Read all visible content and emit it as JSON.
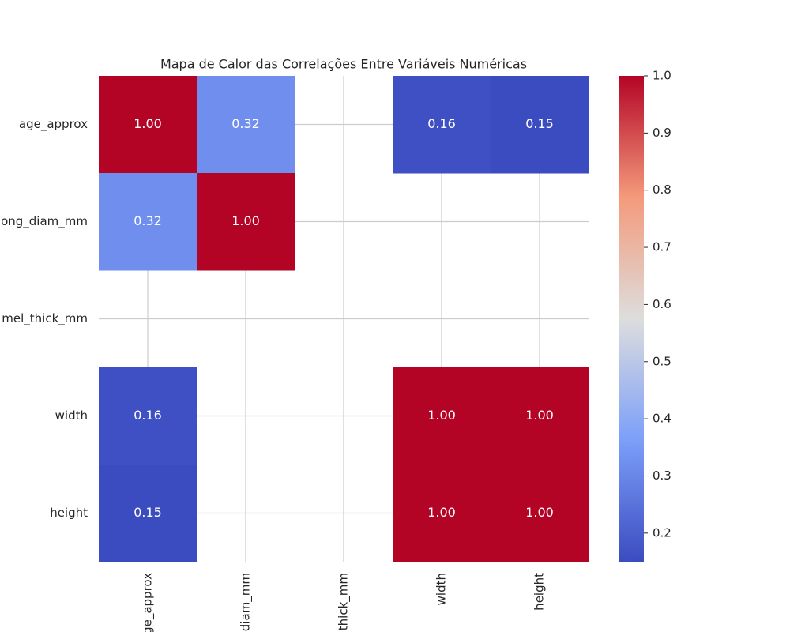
{
  "chart_data": {
    "type": "heatmap",
    "title": "Mapa de Calor das Correlações Entre Variáveis Numéricas",
    "x_categories": [
      "ge_approx",
      "diam_mm",
      "thick_mm",
      "width",
      "height"
    ],
    "y_categories": [
      "age_approx",
      "ong_diam_mm",
      "mel_thick_mm",
      "width",
      "height"
    ],
    "values": [
      [
        1.0,
        0.32,
        null,
        0.16,
        0.15
      ],
      [
        0.32,
        1.0,
        null,
        null,
        null
      ],
      [
        null,
        null,
        null,
        null,
        null
      ],
      [
        0.16,
        null,
        null,
        1.0,
        1.0
      ],
      [
        0.15,
        null,
        null,
        1.0,
        1.0
      ]
    ],
    "value_labels": [
      [
        "1.00",
        "0.32",
        null,
        "0.16",
        "0.15"
      ],
      [
        "0.32",
        "1.00",
        null,
        null,
        null
      ],
      [
        null,
        null,
        null,
        null,
        null
      ],
      [
        "0.16",
        null,
        null,
        "1.00",
        "1.00"
      ],
      [
        "0.15",
        null,
        null,
        "1.00",
        "1.00"
      ]
    ],
    "colormap": "coolwarm",
    "zlim": [
      0.15,
      1.0
    ],
    "zticks": [
      0.2,
      0.3,
      0.4,
      0.5,
      0.6,
      0.7,
      0.8,
      0.9,
      {
        "value": 1.0,
        "label": "1.0"
      }
    ],
    "grid": true
  }
}
